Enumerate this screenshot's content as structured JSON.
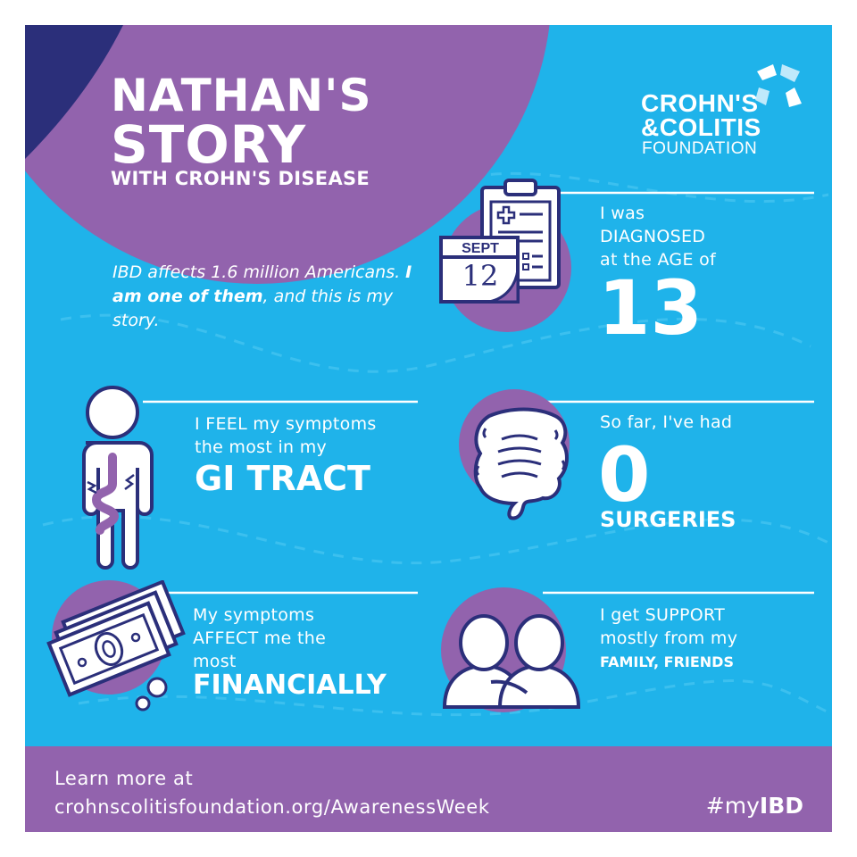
{
  "title": {
    "line1": "NATHAN'S",
    "line2": "STORY",
    "line3": "WITH CROHN'S DISEASE"
  },
  "intro": {
    "part1": "IBD affects 1.6 million Americans. ",
    "emphasis1": "I am one of them",
    "part2": ", and this is my story."
  },
  "logo": {
    "line1": "CROHN'S",
    "line2": "&COLITIS",
    "line3": "FOUNDATION"
  },
  "stats": {
    "diagnosed": {
      "line1": "I was",
      "line2": "DIAGNOSED",
      "line3": "at the AGE of",
      "value": "13",
      "calendar_month": "SEPT",
      "calendar_day": "12"
    },
    "symptoms": {
      "line1": "I FEEL my symptoms",
      "line2": "the most in my",
      "value": "GI TRACT"
    },
    "surgeries": {
      "line1": "So far, I've had",
      "value": "0",
      "line2": "SURGERIES"
    },
    "financial": {
      "line1": "My symptoms",
      "line2": "AFFECT me the",
      "line3": "most",
      "value": "FINANCIALLY"
    },
    "support": {
      "line1": "I get SUPPORT",
      "line2": "mostly from my",
      "value": "FAMILY, FRIENDS"
    }
  },
  "footer": {
    "learn_more": "Learn more at",
    "url": "crohnscolitisfoundation.org/AwarenessWeek",
    "hashtag_prefix": "#my",
    "hashtag_bold": "IBD"
  },
  "colors": {
    "background_blue": "#1fb3ea",
    "purple": "#9263ad",
    "navy": "#2b2f7a",
    "white": "#ffffff"
  }
}
